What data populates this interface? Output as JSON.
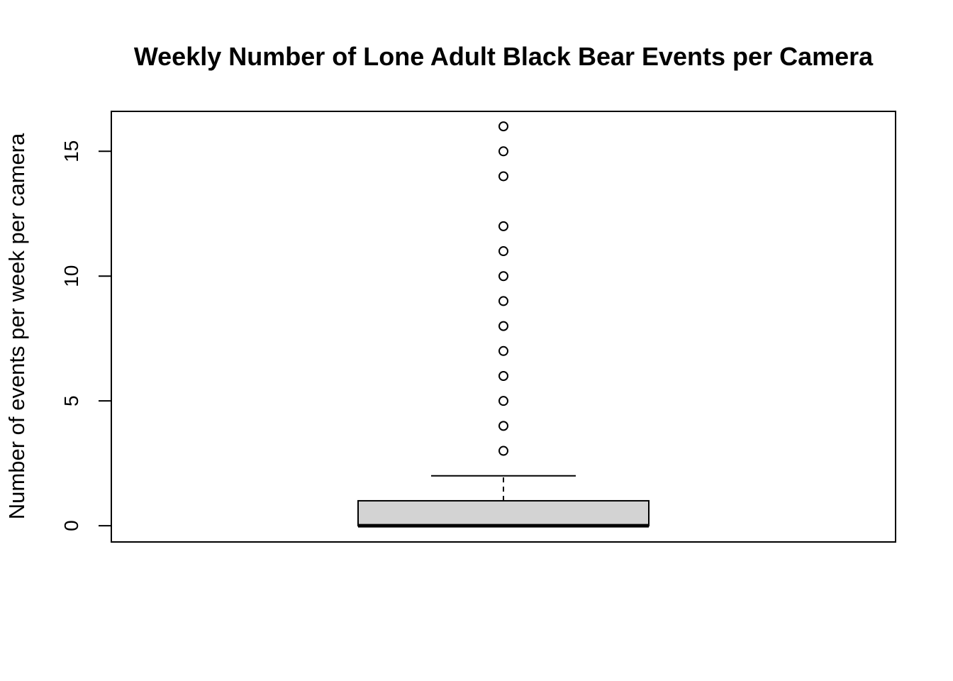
{
  "chart_data": {
    "type": "boxplot",
    "title": "Weekly Number of Lone Adult Black Bear Events per Camera",
    "xlabel": "",
    "ylabel": "Number of events per week per camera",
    "ylim": [
      -0.65,
      16.6
    ],
    "yticks": [
      0,
      5,
      10,
      15
    ],
    "grid": false,
    "legend": "none",
    "box": {
      "min": 0,
      "q1": 0,
      "median": 0,
      "q3": 1,
      "whisker_low": 0,
      "whisker_high": 2,
      "outliers": [
        3,
        4,
        5,
        6,
        7,
        8,
        9,
        10,
        11,
        12,
        14,
        15,
        16
      ]
    },
    "colors": {
      "box_fill": "#d3d3d3",
      "stroke": "#000000"
    }
  }
}
